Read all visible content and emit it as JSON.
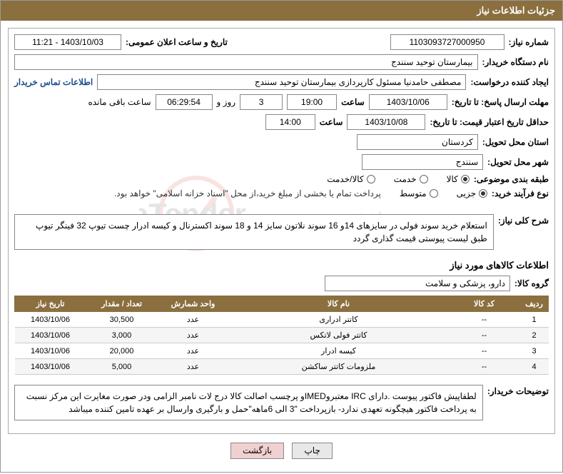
{
  "header": {
    "title": "جزئیات اطلاعات نیاز"
  },
  "fields": {
    "need_number_label": "شماره نیاز:",
    "need_number": "1103093727000950",
    "announce_datetime_label": "تاریخ و ساعت اعلان عمومی:",
    "announce_datetime": "1403/10/03 - 11:21",
    "buyer_org_label": "نام دستگاه خریدار:",
    "buyer_org": "بیمارستان توحید سنندج",
    "requester_label": "ایجاد کننده درخواست:",
    "requester": "مصطفی حامدنیا مسئول کارپردازی بیمارستان توحید سنندج",
    "contact_link": "اطلاعات تماس خریدار",
    "response_deadline_label": "مهلت ارسال پاسخ: تا تاریخ:",
    "response_date": "1403/10/06",
    "time_label": "ساعت",
    "response_time": "19:00",
    "days_remaining": "3",
    "days_suffix": "روز و",
    "time_remaining": "06:29:54",
    "time_suffix": "ساعت باقی مانده",
    "validity_label": "حداقل تاریخ اعتبار قیمت: تا تاریخ:",
    "validity_date": "1403/10/08",
    "validity_time": "14:00",
    "province_label": "استان محل تحویل:",
    "province": "کردستان",
    "city_label": "شهر محل تحویل:",
    "city": "سنندج",
    "category_label": "طبقه بندی موضوعی:",
    "cat_goods": "کالا",
    "cat_service": "خدمت",
    "cat_both": "کالا/خدمت",
    "purchase_type_label": "نوع فرآیند خرید:",
    "pt_partial": "جزیی",
    "pt_medium": "متوسط",
    "payment_note": "پرداخت تمام یا بخشی از مبلغ خرید،از محل \"اسناد خزانه اسلامی\" خواهد بود.",
    "need_summary_label": "شرح کلی نیاز:",
    "need_summary": "استعلام خرید سوند فولی در سایزهای 14و 16 سوند نلاتون سایز 14 و 18 سوند اکسترنال و کیسه ادرار چست تیوپ 32 فینگر تیوپ طبق لیست پیوستی قیمت گذاری گردد",
    "items_section_title": "اطلاعات کالاهای مورد نیاز",
    "goods_group_label": "گروه کالا:",
    "goods_group": "دارو، پزشکی و سلامت",
    "buyer_notes_label": "توضیحات خریدار:",
    "buyer_notes": "لطفاپیش فاکتور پیوست .دارای IRC معتبروIMEDو پرچسب اصالت کالا درج لات نامبر الزامی ودر صورت مغایرت این مرکز نسبت به پرداخت فاکتور هیچگونه تعهدی ندارد- بازپرداخت \"3 الی 6ماهه\"حمل و بارگیری وارسال بر عهده تامین کننده میباشد",
    "btn_print": "چاپ",
    "btn_back": "بازگشت"
  },
  "table": {
    "headers": [
      "ردیف",
      "کد کالا",
      "نام کالا",
      "واحد شمارش",
      "تعداد / مقدار",
      "تاریخ نیاز"
    ],
    "rows": [
      [
        "1",
        "--",
        "کاتتر ادراری",
        "عدد",
        "30,500",
        "1403/10/06"
      ],
      [
        "2",
        "--",
        "کاتتر فولی لاتکس",
        "عدد",
        "3,000",
        "1403/10/06"
      ],
      [
        "3",
        "--",
        "کیسه ادرار",
        "عدد",
        "20,000",
        "1403/10/06"
      ],
      [
        "4",
        "--",
        "ملزومات کاتتر ساکشن",
        "عدد",
        "5,000",
        "1403/10/06"
      ]
    ]
  },
  "colors": {
    "header_bg": "#8b6f3f",
    "header_text": "#ffffff",
    "link": "#1a4d8f",
    "border": "#888888"
  }
}
